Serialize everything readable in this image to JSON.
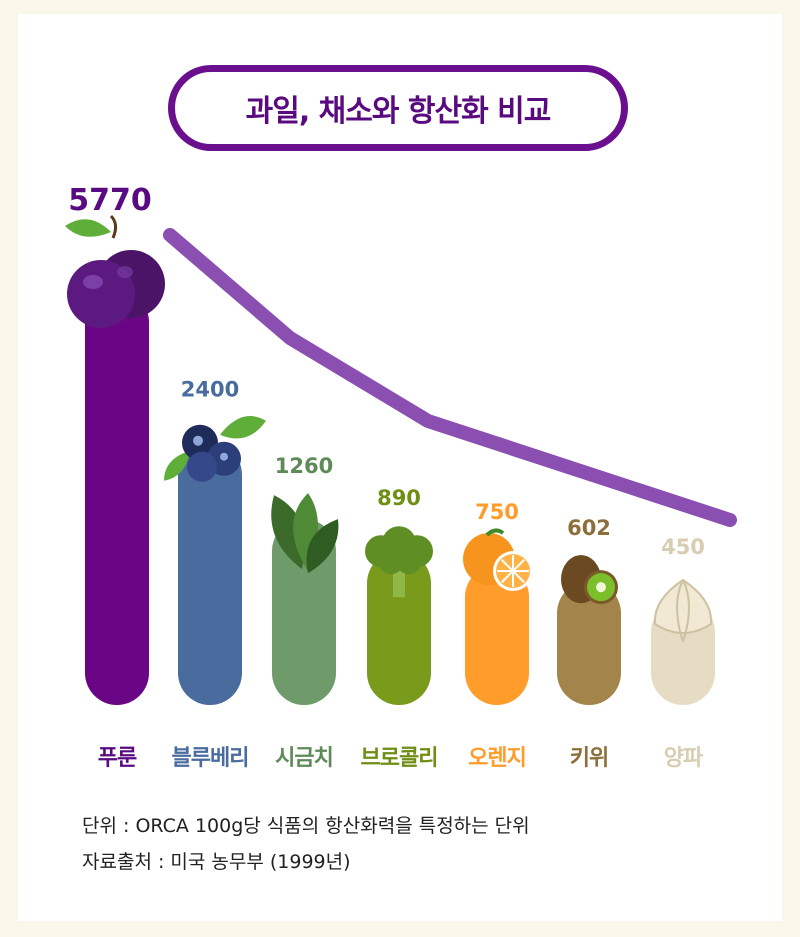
{
  "title": "과일, 채소와 항산화 비교",
  "chart_data": {
    "type": "bar",
    "categories": [
      "푸룬",
      "블루베리",
      "시금치",
      "브로콜리",
      "오렌지",
      "키위",
      "양파"
    ],
    "values": [
      5770,
      2400,
      1260,
      890,
      750,
      602,
      450
    ],
    "value_labels": [
      "5770",
      "2400",
      "1260",
      "890",
      "750",
      "602",
      "450"
    ],
    "colors": [
      "#6a0585",
      "#4a6b9e",
      "#6f9a6a",
      "#7a9a1c",
      "#ff9c2a",
      "#a3844b",
      "#e6dcc4"
    ],
    "label_colors": [
      "#5a0a80",
      "#4a6b9e",
      "#5e8a58",
      "#6e8e14",
      "#ff9c2a",
      "#8c6f3a",
      "#d8cdb2"
    ],
    "trend_line_color": "#8a4fb0",
    "icons": [
      "plum-icon",
      "blueberry-icon",
      "spinach-icon",
      "broccoli-icon",
      "orange-icon",
      "kiwi-icon",
      "onion-icon"
    ]
  },
  "footnotes": {
    "unit": "단위 : ORCA 100g당 식품의 항산화력을 특정하는 단위",
    "source": "자료출처 : 미국 농무부 (1999년)"
  }
}
